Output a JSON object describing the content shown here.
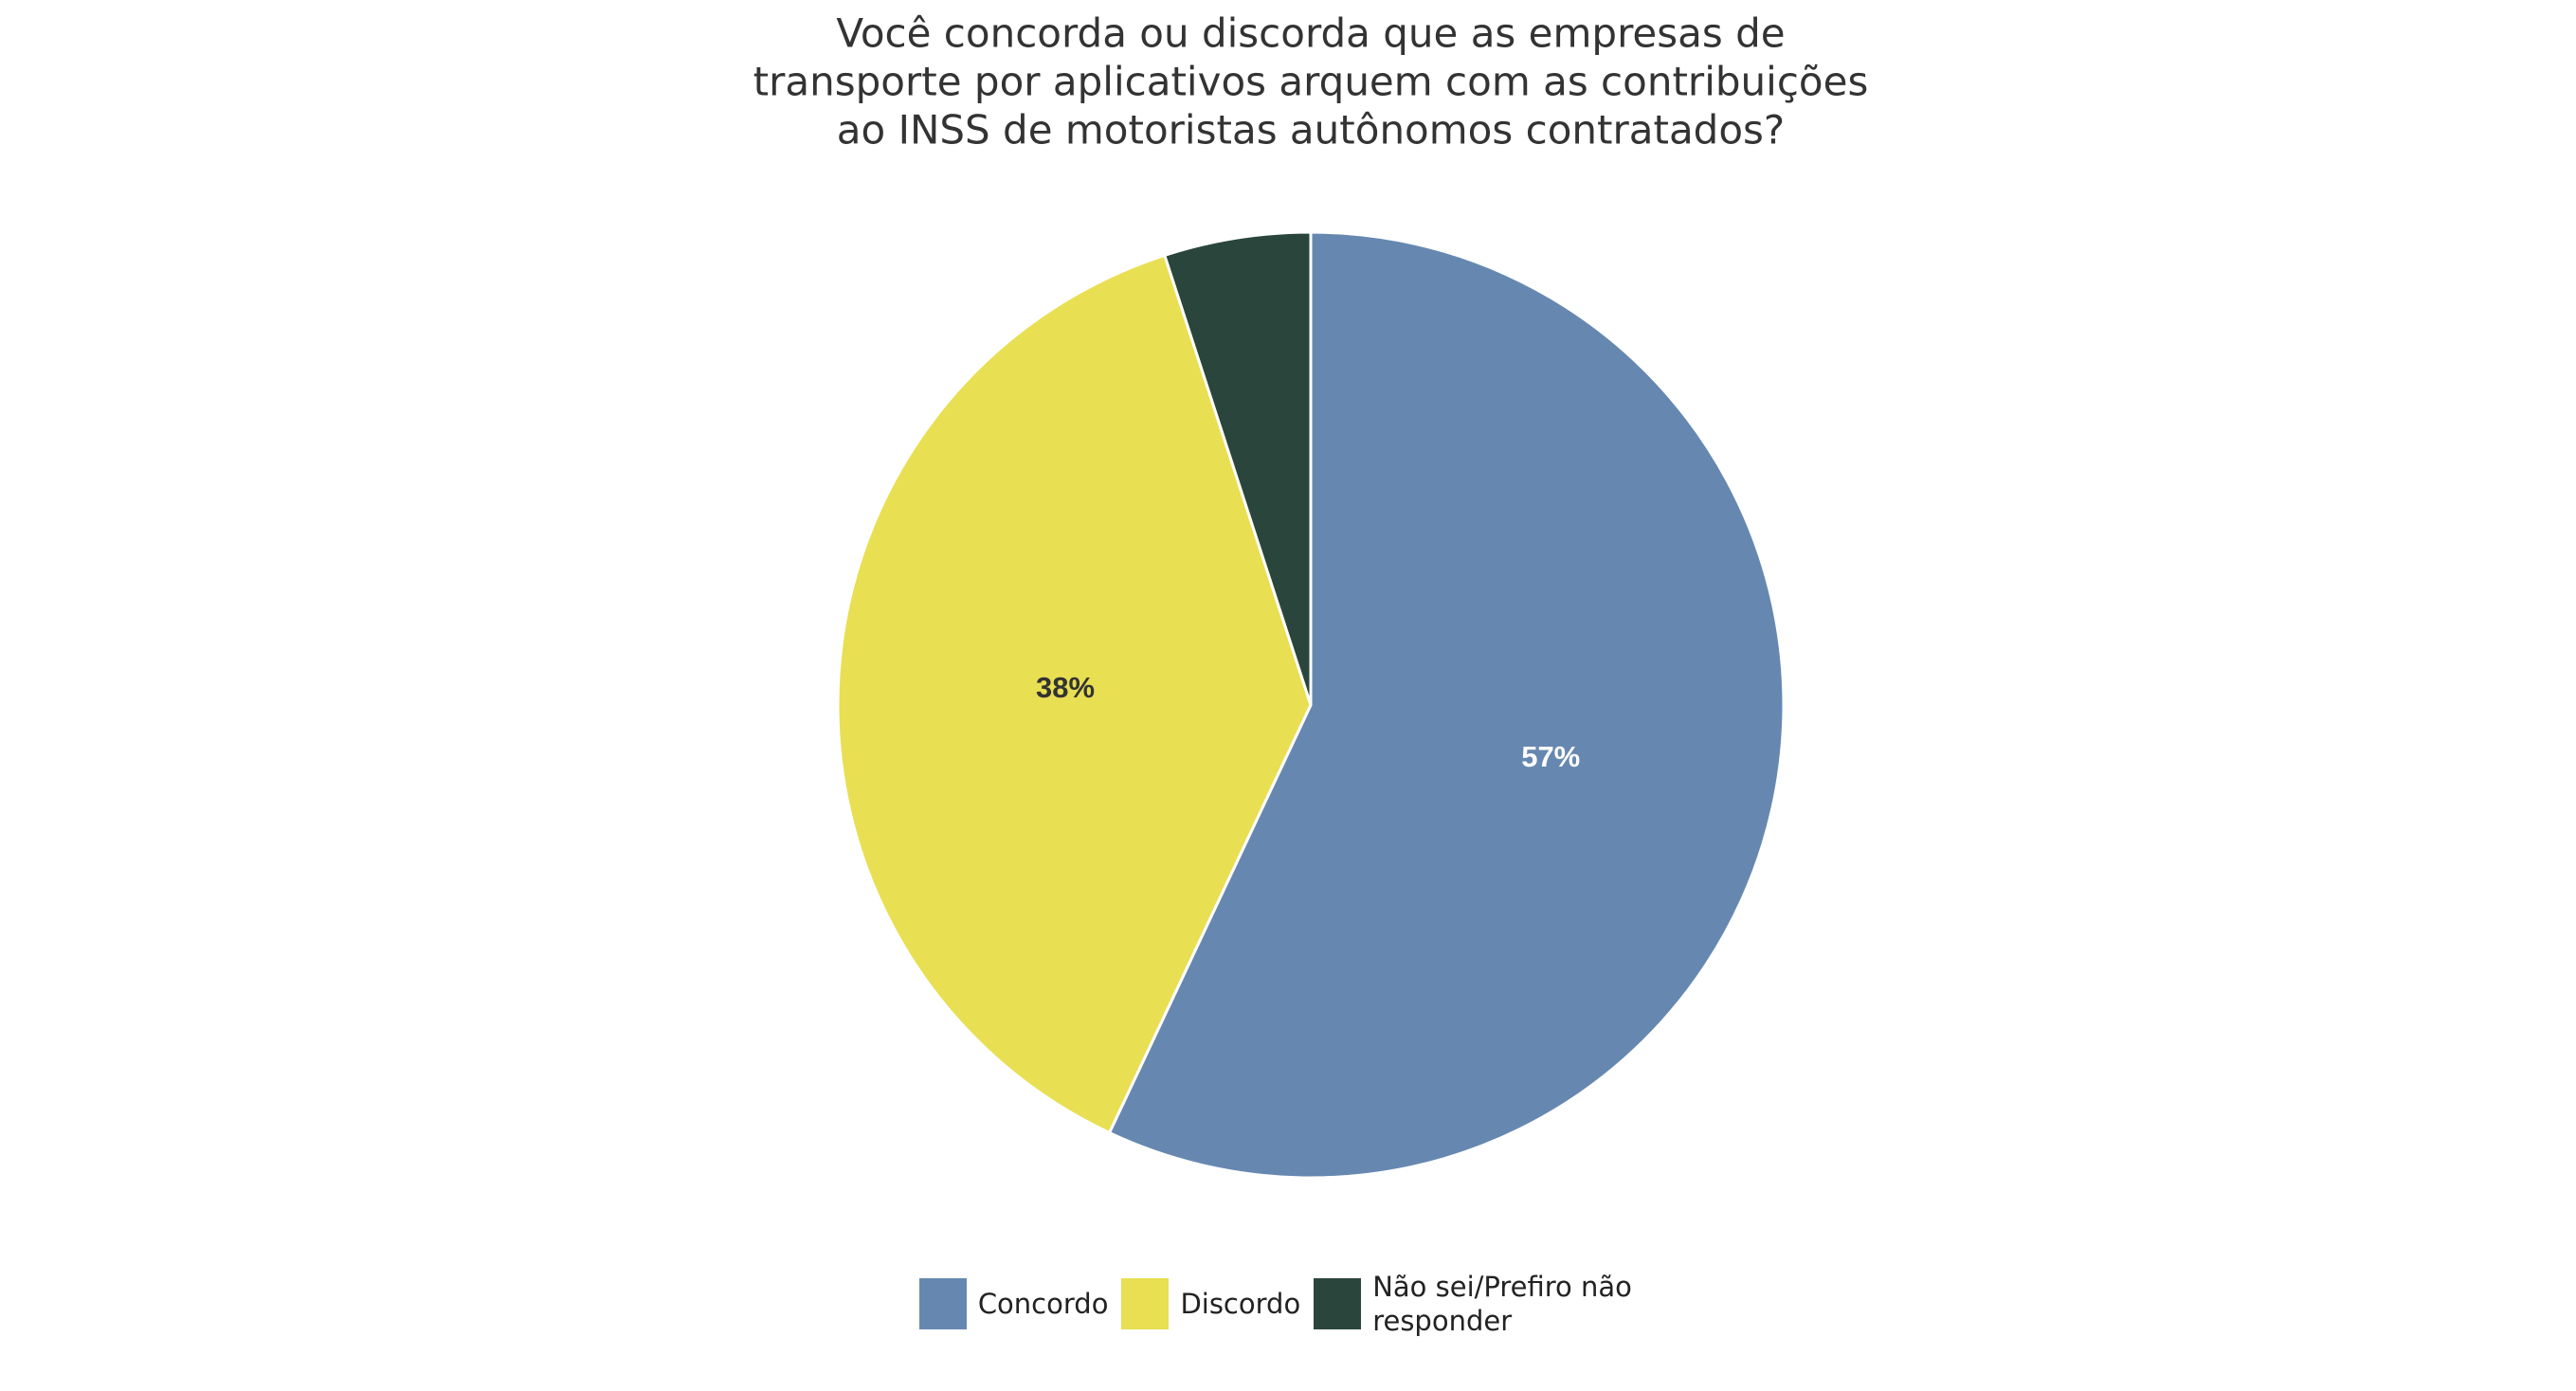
{
  "chart_data": {
    "type": "pie",
    "title": [
      "Você concorda ou discorda que as empresas de",
      "transporte por aplicativos arquem com as contribuições",
      "ao INSS de motoristas autônomos contratados?"
    ],
    "categories": [
      "Concordo",
      "Discordo",
      "Não sei/Prefiro não responder"
    ],
    "values": [
      57,
      38,
      5
    ],
    "value_labels": [
      "57%",
      "38%",
      null
    ],
    "colors": [
      "#6688b0",
      "#e8df52",
      "#2a463c"
    ],
    "legend": "bottom"
  }
}
